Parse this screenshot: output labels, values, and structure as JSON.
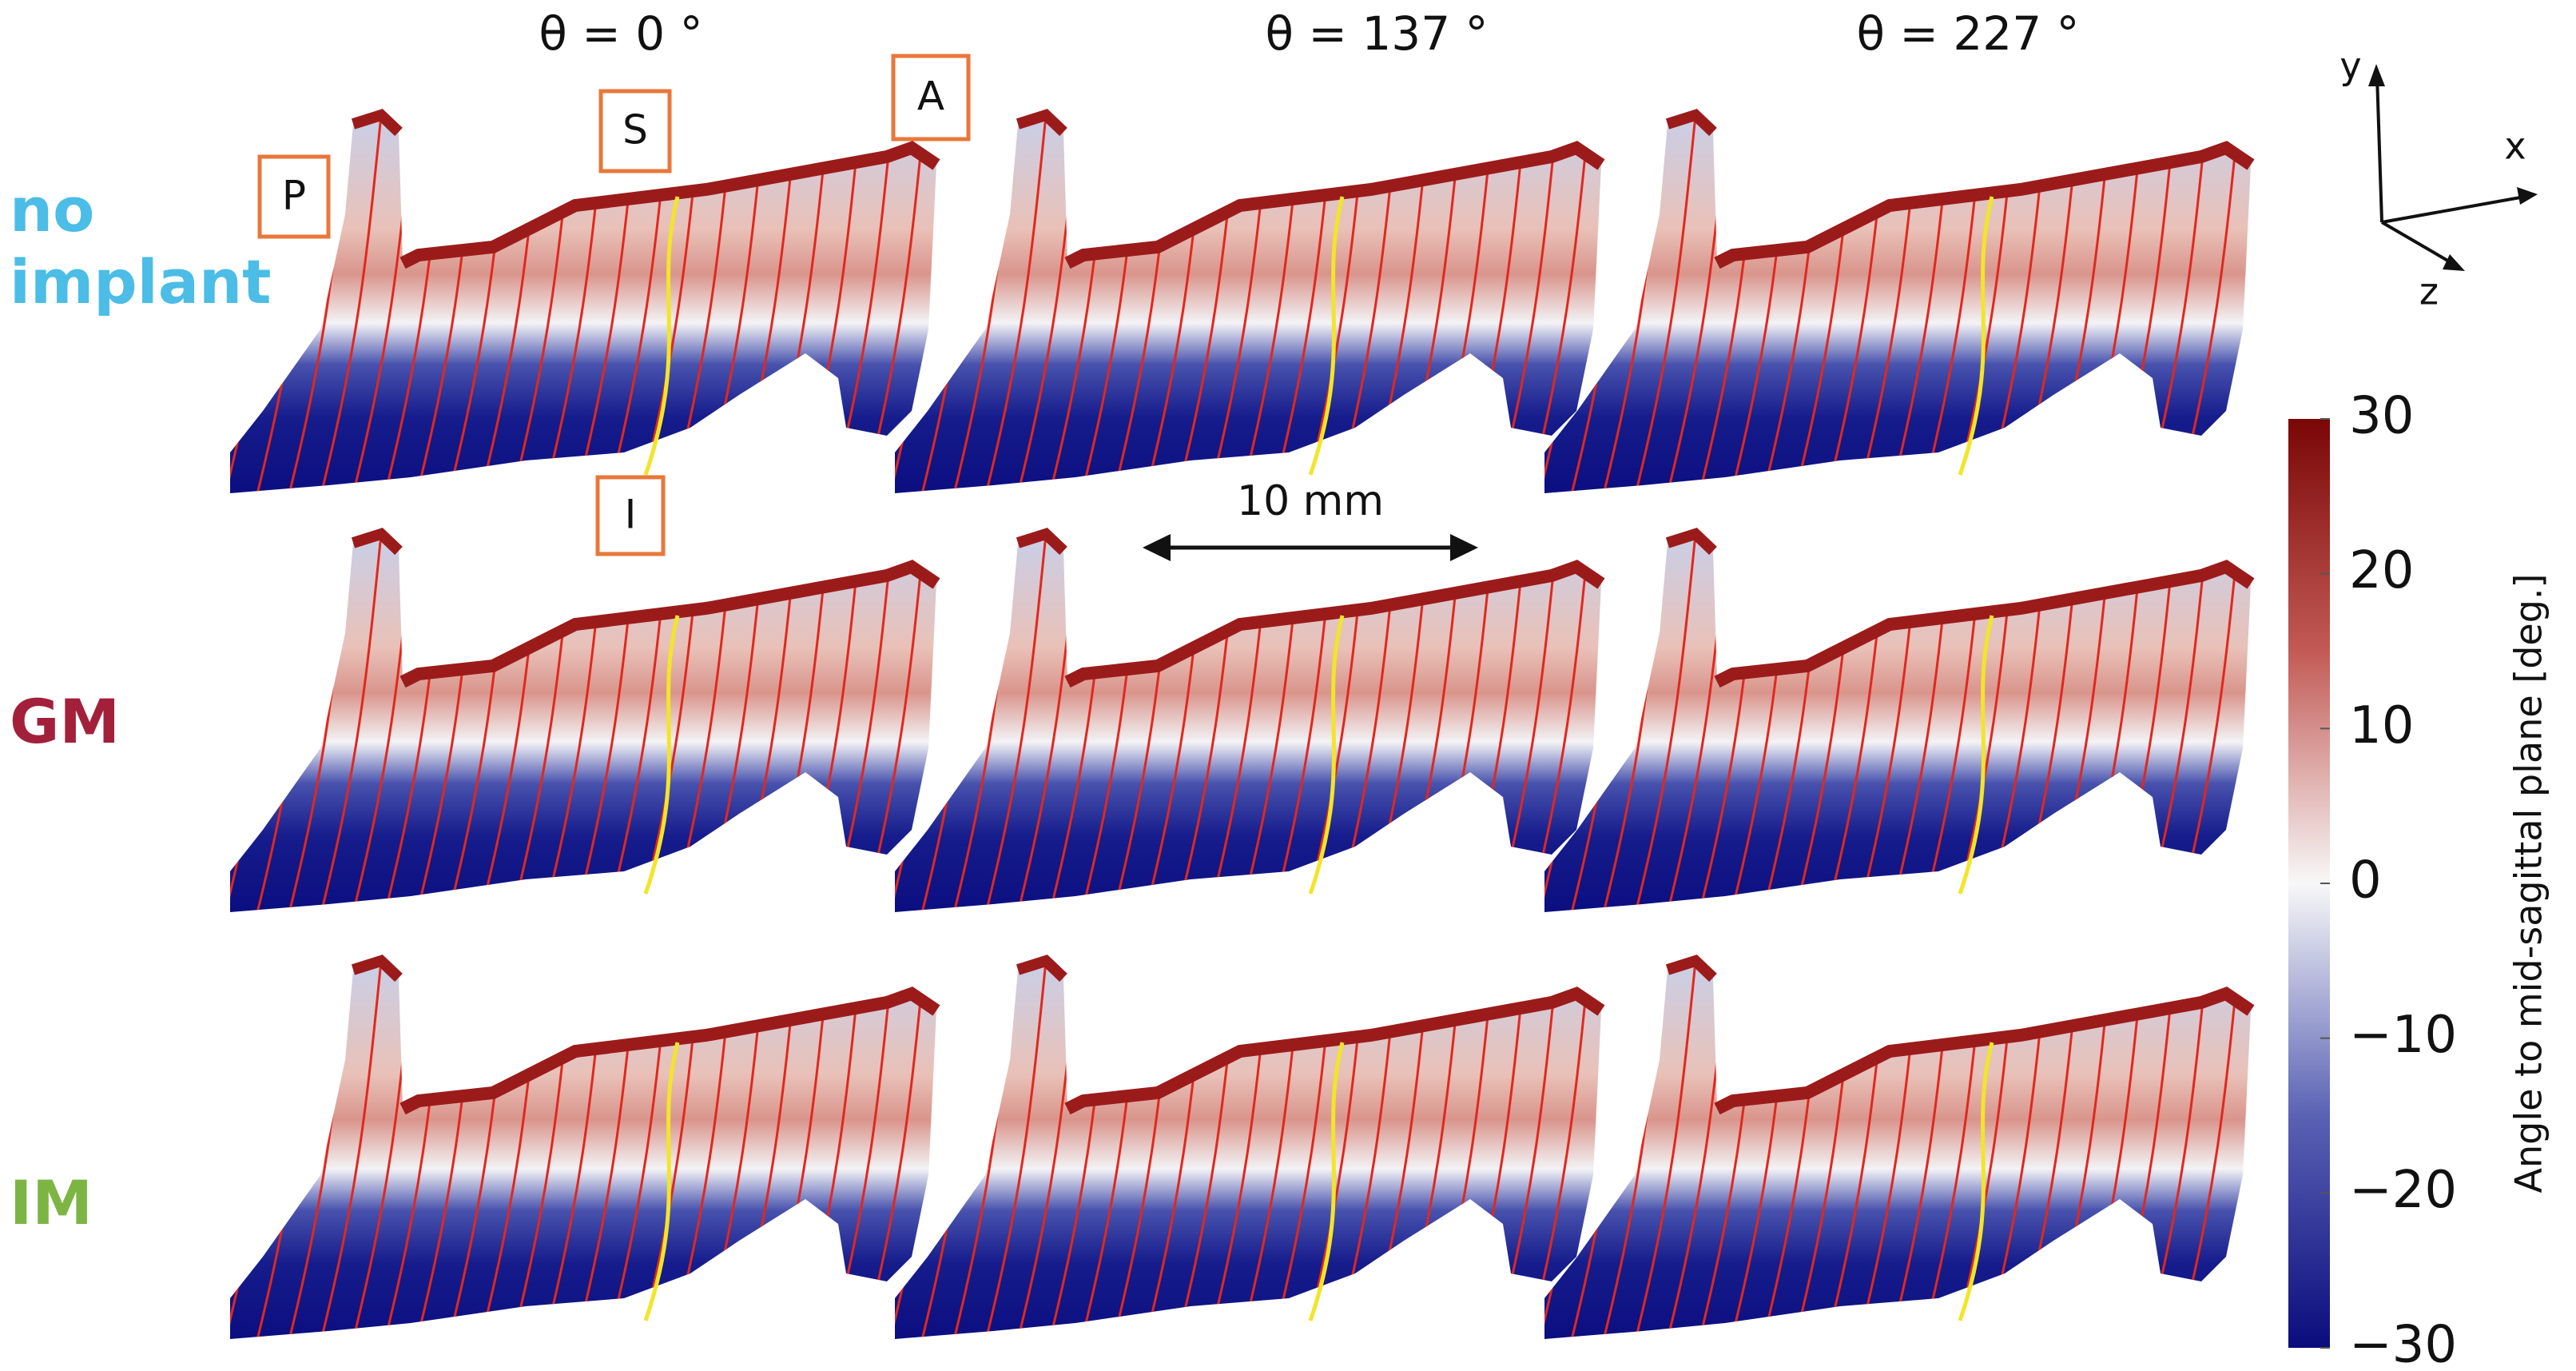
{
  "column_headers": [
    "θ = 0 °",
    "θ = 137 °",
    "θ = 227 °"
  ],
  "row_labels": [
    "no implant",
    "GM",
    "IM"
  ],
  "orientation_labels": [
    "P",
    "S",
    "A",
    "I"
  ],
  "scale_bar": "10 mm",
  "axes_labels": [
    "y",
    "x",
    "z"
  ],
  "colorbar": {
    "label": "Angle to mid-sagittal plane [deg.]",
    "lim": [
      -30,
      30
    ],
    "ticks": [
      30,
      20,
      10,
      0,
      {
        "value": -10,
        "label": "−10"
      },
      {
        "value": -20,
        "label": "−20"
      },
      {
        "value": -30,
        "label": "−30"
      }
    ]
  }
}
